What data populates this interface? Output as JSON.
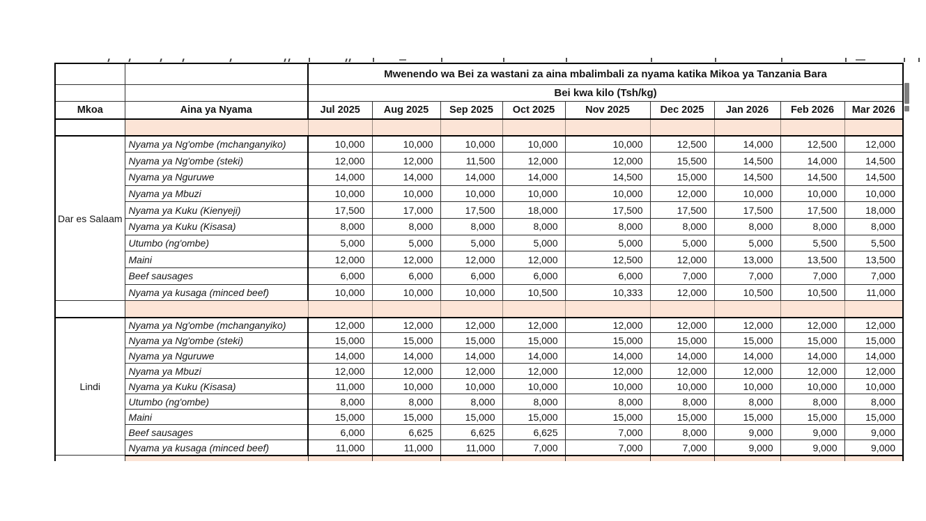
{
  "page": {
    "title": "Mwenendo wa Bei za wastani za aina mbalimbali za nyama katika Mikoa ya Tanzania Bara",
    "subtitle": "Bei kwa kilo (Tsh/kg)"
  },
  "table": {
    "region_header": "Mkoa",
    "item_header": "Aina ya Nyama",
    "months": [
      "Jul 2025",
      "Aug 2025",
      "Sep 2025",
      "Oct 2025",
      "Nov 2025",
      "Dec 2025",
      "Jan 2026",
      "Feb 2026",
      "Mar 2026"
    ],
    "sections": [
      {
        "region": "Dar es Salaam",
        "rows": [
          {
            "item": "Nyama ya Ng'ombe (mchanganyiko)",
            "values": [
              "10,000",
              "10,000",
              "10,000",
              "10,000",
              "10,000",
              "12,500",
              "14,000",
              "12,500",
              "12,000"
            ]
          },
          {
            "item": "Nyama ya Ng'ombe (steki)",
            "values": [
              "12,000",
              "12,000",
              "11,500",
              "12,000",
              "12,000",
              "15,500",
              "14,500",
              "14,000",
              "14,500"
            ]
          },
          {
            "item": "Nyama ya Nguruwe",
            "values": [
              "14,000",
              "14,000",
              "14,000",
              "14,000",
              "14,500",
              "15,000",
              "14,500",
              "14,500",
              "14,500"
            ]
          },
          {
            "item": "Nyama ya Mbuzi",
            "values": [
              "10,000",
              "10,000",
              "10,000",
              "10,000",
              "10,000",
              "12,000",
              "10,000",
              "10,000",
              "10,000"
            ]
          },
          {
            "item": "Nyama ya Kuku (Kienyeji)",
            "values": [
              "17,500",
              "17,000",
              "17,500",
              "18,000",
              "17,500",
              "17,500",
              "17,500",
              "17,500",
              "18,000"
            ]
          },
          {
            "item": "Nyama ya Kuku (Kisasa)",
            "values": [
              "8,000",
              "8,000",
              "8,000",
              "8,000",
              "8,000",
              "8,000",
              "8,000",
              "8,000",
              "8,000"
            ]
          },
          {
            "item": "Utumbo (ng'ombe)",
            "values": [
              "5,000",
              "5,000",
              "5,000",
              "5,000",
              "5,000",
              "5,000",
              "5,000",
              "5,500",
              "5,500"
            ]
          },
          {
            "item": "Maini",
            "values": [
              "12,000",
              "12,000",
              "12,000",
              "12,000",
              "12,500",
              "12,000",
              "13,000",
              "13,500",
              "13,500"
            ]
          },
          {
            "item": "Beef sausages",
            "values": [
              "6,000",
              "6,000",
              "6,000",
              "6,000",
              "6,000",
              "7,000",
              "7,000",
              "7,000",
              "7,000"
            ]
          },
          {
            "item": "Nyama ya kusaga (minced beef)",
            "values": [
              "10,000",
              "10,000",
              "10,000",
              "10,500",
              "10,333",
              "12,000",
              "10,500",
              "10,500",
              "11,000"
            ]
          }
        ]
      },
      {
        "region": "Lindi",
        "rows": [
          {
            "item": "Nyama ya Ng'ombe (mchanganyiko)",
            "values": [
              "12,000",
              "12,000",
              "12,000",
              "12,000",
              "12,000",
              "12,000",
              "12,000",
              "12,000",
              "12,000"
            ]
          },
          {
            "item": "Nyama ya Ng'ombe (steki)",
            "values": [
              "15,000",
              "15,000",
              "15,000",
              "15,000",
              "15,000",
              "15,000",
              "15,000",
              "15,000",
              "15,000"
            ]
          },
          {
            "item": "Nyama ya Nguruwe",
            "values": [
              "14,000",
              "14,000",
              "14,000",
              "14,000",
              "14,000",
              "14,000",
              "14,000",
              "14,000",
              "14,000"
            ]
          },
          {
            "item": "Nyama ya Mbuzi",
            "values": [
              "12,000",
              "12,000",
              "12,000",
              "12,000",
              "12,000",
              "12,000",
              "12,000",
              "12,000",
              "12,000"
            ]
          },
          {
            "item": "Nyama ya Kuku (Kisasa)",
            "values": [
              "11,000",
              "10,000",
              "10,000",
              "10,000",
              "10,000",
              "10,000",
              "10,000",
              "10,000",
              "10,000"
            ]
          },
          {
            "item": "Utumbo (ng'ombe)",
            "values": [
              "8,000",
              "8,000",
              "8,000",
              "8,000",
              "8,000",
              "8,000",
              "8,000",
              "8,000",
              "8,000"
            ]
          },
          {
            "item": "Maini",
            "values": [
              "15,000",
              "15,000",
              "15,000",
              "15,000",
              "15,000",
              "15,000",
              "15,000",
              "15,000",
              "15,000"
            ]
          },
          {
            "item": "Beef sausages",
            "values": [
              "6,000",
              "6,625",
              "6,625",
              "6,625",
              "7,000",
              "8,000",
              "9,000",
              "9,000",
              "9,000"
            ]
          },
          {
            "item": "Nyama ya kusaga (minced beef)",
            "values": [
              "11,000",
              "11,000",
              "11,000",
              "7,000",
              "7,000",
              "7,000",
              "9,000",
              "9,000",
              "9,000"
            ]
          }
        ]
      }
    ]
  },
  "colors": {
    "separator_fill": "#fce4d6",
    "grid_border": "#000000",
    "scroll_fragment": "#7f7f7f"
  }
}
